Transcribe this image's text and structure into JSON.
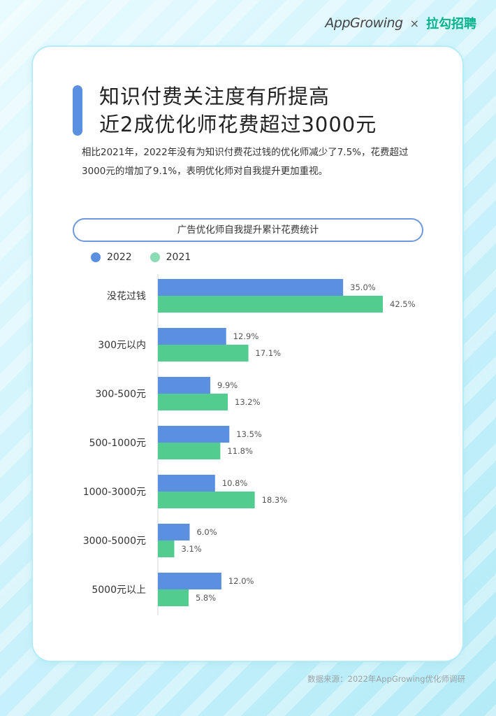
{
  "brand": {
    "appgrowing": "AppGrowing",
    "separator": "×",
    "lagou": "拉勾招聘"
  },
  "headline": {
    "line1": "知识付费关注度有所提高",
    "line2": "近2成优化师花费超过3000元"
  },
  "description": "相比2021年，2022年没有为知识付费花过钱的优化师减少了7.5%，花费超过3000元的增加了9.1%，表明优化师对自我提升更加重视。",
  "colors": {
    "accent": "#5b8fe0",
    "series_2022": "#5b8fe0",
    "series_2021": "#52cc8f"
  },
  "chart_data": {
    "type": "bar",
    "orientation": "horizontal",
    "title": "广告优化师自我提升累计花费统计",
    "categories": [
      "没花过钱",
      "300元以内",
      "300-500元",
      "500-1000元",
      "1000-3000元",
      "3000-5000元",
      "5000元以上"
    ],
    "series": [
      {
        "name": "2022",
        "values": [
          35.0,
          12.9,
          9.9,
          13.5,
          10.8,
          6.0,
          12.0
        ]
      },
      {
        "name": "2021",
        "values": [
          42.5,
          17.1,
          13.2,
          11.8,
          18.3,
          3.1,
          5.8
        ]
      }
    ],
    "value_suffix": "%",
    "legend_position": "top-left",
    "grid": false
  },
  "source": "数据来源：2022年AppGrowing优化师调研"
}
